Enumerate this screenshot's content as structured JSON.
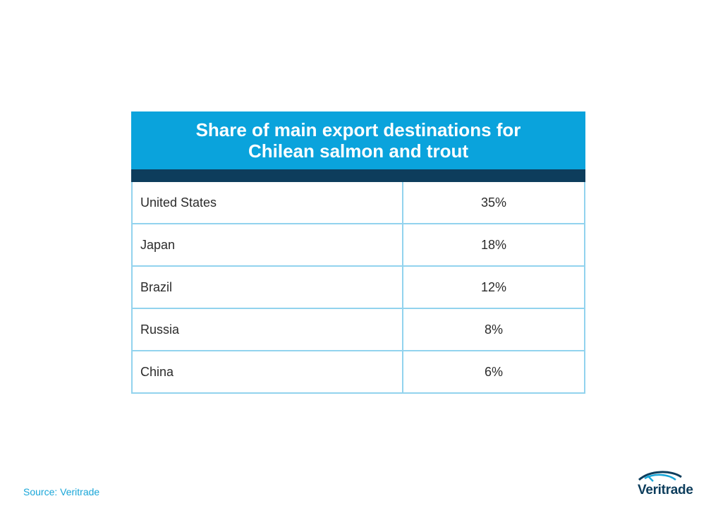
{
  "chart_data": {
    "type": "table",
    "title": "Share of main export destinations for\nChilean salmon and trout",
    "rows": [
      {
        "country": "United States",
        "share": "35%",
        "value": 35
      },
      {
        "country": "Japan",
        "share": "18%",
        "value": 18
      },
      {
        "country": "Brazil",
        "share": "12%",
        "value": 12
      },
      {
        "country": "Russia",
        "share": "8%",
        "value": 8
      },
      {
        "country": "China",
        "share": "6%",
        "value": 6
      }
    ]
  },
  "footer": {
    "source": "Source: Veritrade",
    "logo_text": "Veritrade"
  },
  "colors": {
    "title_bar": "#0aa3dc",
    "dark_band": "#0d3d5c",
    "grid_lines": "#92d3ee",
    "source_text": "#19a6d8"
  }
}
